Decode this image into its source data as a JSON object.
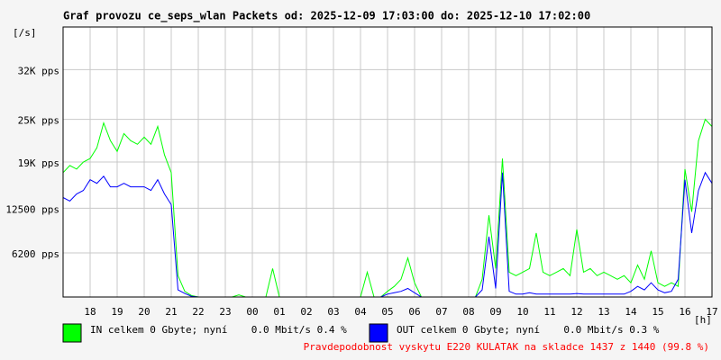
{
  "chart_data": {
    "type": "line",
    "title": "Graf provozu ce_seps_wlan Packets od: 2025-12-09 17:03:00 do: 2025-12-10 17:02:00",
    "y_label": "[/s]",
    "x_label": "[h]",
    "footer": "Pravdepodobnost vyskytu E220 KULATAK na skladce 1437 z 1440 (99.8 %)",
    "xlim": [
      17,
      41
    ],
    "ylim": [
      0,
      38000
    ],
    "grid": true,
    "yticks": [
      {
        "value": 6200,
        "label": "6200 pps"
      },
      {
        "value": 12500,
        "label": "12500 pps"
      },
      {
        "value": 19000,
        "label": "19K pps"
      },
      {
        "value": 25000,
        "label": "25K pps"
      },
      {
        "value": 32000,
        "label": "32K pps"
      }
    ],
    "xticks": [
      18,
      19,
      20,
      21,
      22,
      23,
      {
        "value": 24,
        "label": "00"
      },
      {
        "value": 25,
        "label": "01"
      },
      {
        "value": 26,
        "label": "02"
      },
      {
        "value": 27,
        "label": "03"
      },
      {
        "value": 28,
        "label": "04"
      },
      {
        "value": 29,
        "label": "05"
      },
      {
        "value": 30,
        "label": "06"
      },
      {
        "value": 31,
        "label": "07"
      },
      {
        "value": 32,
        "label": "08"
      },
      {
        "value": 33,
        "label": "09"
      },
      {
        "value": 34,
        "label": "10"
      },
      {
        "value": 35,
        "label": "11"
      },
      {
        "value": 36,
        "label": "12"
      },
      {
        "value": 37,
        "label": "13"
      },
      {
        "value": 38,
        "label": "14"
      },
      {
        "value": 39,
        "label": "15"
      },
      {
        "value": 40,
        "label": "16"
      },
      {
        "value": 41,
        "label": "17"
      }
    ],
    "x": [
      17,
      17.25,
      17.5,
      17.75,
      18,
      18.25,
      18.5,
      18.75,
      19,
      19.25,
      19.5,
      19.75,
      20,
      20.25,
      20.5,
      20.75,
      21,
      21.25,
      21.5,
      21.75,
      22,
      22.25,
      22.5,
      22.75,
      23,
      23.25,
      23.5,
      23.75,
      24,
      24.25,
      24.5,
      24.75,
      25,
      25.25,
      25.5,
      25.75,
      26,
      26.25,
      26.5,
      26.75,
      27,
      27.25,
      27.5,
      27.75,
      28,
      28.25,
      28.5,
      28.75,
      29,
      29.25,
      29.5,
      29.75,
      30,
      30.25,
      30.5,
      30.75,
      31,
      31.25,
      31.5,
      31.75,
      32,
      32.25,
      32.5,
      32.75,
      33,
      33.25,
      33.5,
      33.75,
      34,
      34.25,
      34.5,
      34.75,
      35,
      35.25,
      35.5,
      35.75,
      36,
      36.25,
      36.5,
      36.75,
      37,
      37.25,
      37.5,
      37.75,
      38,
      38.25,
      38.5,
      38.75,
      39,
      39.25,
      39.5,
      39.75,
      40,
      40.25,
      40.5,
      40.75,
      41
    ],
    "series": [
      {
        "name": "IN celkem 0 Gbyte; nyní    0.0 Mbit/s 0.4 %",
        "color": "#00ff00",
        "values": [
          17500,
          18500,
          18000,
          19000,
          19500,
          21000,
          24500,
          22000,
          20500,
          23000,
          22000,
          21500,
          22500,
          21500,
          24000,
          20000,
          17500,
          3000,
          800,
          200,
          0,
          0,
          0,
          0,
          0,
          0,
          300,
          0,
          0,
          0,
          0,
          4000,
          0,
          0,
          0,
          0,
          0,
          0,
          0,
          0,
          0,
          0,
          0,
          0,
          0,
          3500,
          0,
          0,
          800,
          1500,
          2500,
          5500,
          2000,
          0,
          0,
          0,
          0,
          0,
          0,
          0,
          0,
          0,
          2500,
          11500,
          4000,
          19500,
          3500,
          3000,
          3500,
          4000,
          9000,
          3500,
          3000,
          3500,
          4000,
          3000,
          9500,
          3500,
          4000,
          3000,
          3500,
          3000,
          2500,
          3000,
          2000,
          4500,
          2500,
          6500,
          2000,
          1500,
          2000,
          1500,
          18000,
          12000,
          22000,
          25000,
          24000
        ]
      },
      {
        "name": "OUT celkem 0 Gbyte; nyní    0.0 Mbit/s 0.3 %",
        "color": "#0000ff",
        "values": [
          14000,
          13500,
          14500,
          15000,
          16500,
          16000,
          17000,
          15500,
          15500,
          16000,
          15500,
          15500,
          15500,
          15000,
          16500,
          14500,
          13000,
          1000,
          500,
          100,
          0,
          0,
          0,
          0,
          0,
          0,
          0,
          0,
          0,
          0,
          0,
          0,
          0,
          0,
          0,
          0,
          0,
          0,
          0,
          0,
          0,
          0,
          0,
          0,
          0,
          0,
          0,
          0,
          400,
          600,
          800,
          1200,
          600,
          0,
          0,
          0,
          0,
          0,
          0,
          0,
          0,
          0,
          1000,
          8500,
          1200,
          17500,
          800,
          400,
          400,
          600,
          400,
          400,
          400,
          400,
          400,
          400,
          500,
          400,
          400,
          400,
          400,
          400,
          400,
          400,
          800,
          1500,
          1000,
          2000,
          1000,
          600,
          800,
          2500,
          16500,
          9000,
          15000,
          17500,
          16000
        ]
      }
    ]
  }
}
